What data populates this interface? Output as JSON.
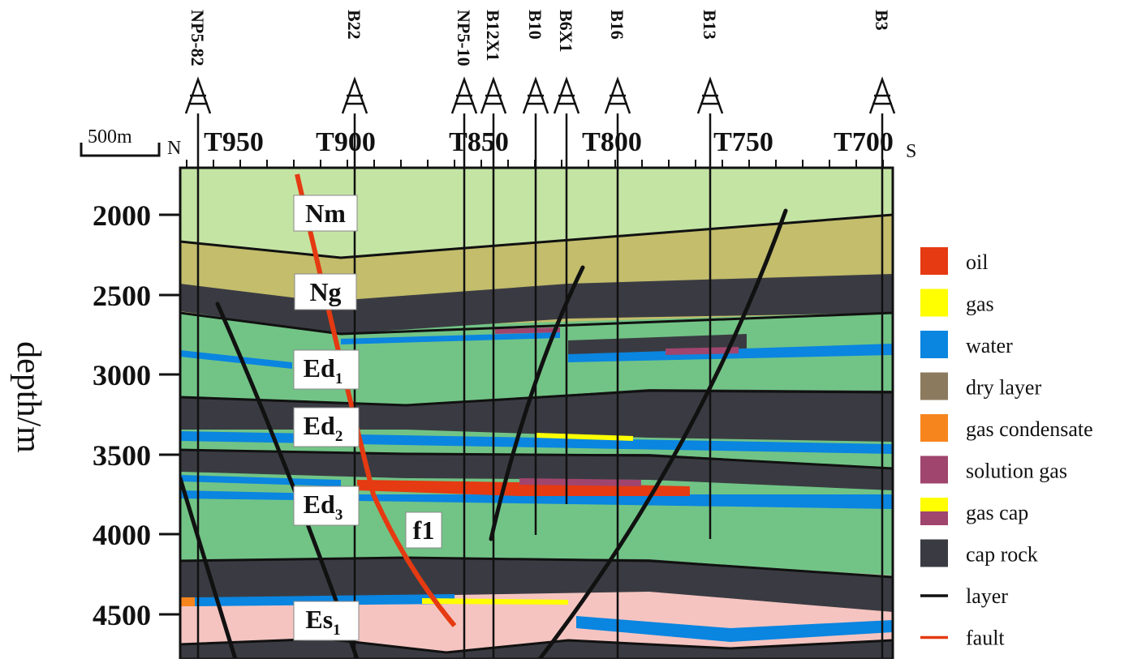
{
  "axis": {
    "ylabel": "depth/m",
    "depth_ticks": [
      "2000",
      "2500",
      "3000",
      "3500",
      "4000",
      "4500"
    ],
    "trace_ticks": [
      "T950",
      "T900",
      "T850",
      "T800",
      "T750",
      "T700"
    ],
    "north": "N",
    "south": "S",
    "scale_bar": "500m"
  },
  "wells": [
    "NP5-82",
    "B22",
    "NP5-10",
    "B12X1",
    "B10",
    "B6X1",
    "B16",
    "B13",
    "B3"
  ],
  "formations": [
    {
      "base": "Nm",
      "sub": ""
    },
    {
      "base": "Ng",
      "sub": ""
    },
    {
      "base": "Ed",
      "sub": "1"
    },
    {
      "base": "Ed",
      "sub": "2"
    },
    {
      "base": "Ed",
      "sub": "3"
    },
    {
      "base": "Es",
      "sub": "1"
    }
  ],
  "fault_label": "f1",
  "legend": [
    {
      "label": "oil",
      "color": "#e53a12"
    },
    {
      "label": "gas",
      "color": "#ffff00"
    },
    {
      "label": "water",
      "color": "#0a85e0"
    },
    {
      "label": "dry layer",
      "color": "#8c7a5e"
    },
    {
      "label": "gas condensate",
      "color": "#f7851e"
    },
    {
      "label": "solution gas",
      "color": "#a0456e"
    },
    {
      "label": "gas cap",
      "color": "#ffff00",
      "color2": "#a0456e"
    },
    {
      "label": "cap rock",
      "color": "#3a3b42"
    },
    {
      "label": "layer",
      "color": "#111111"
    },
    {
      "label": "fault",
      "color": "#e53a12"
    }
  ],
  "colors": {
    "nm": "#c4e4a4",
    "ng": "#c3bd6c",
    "ed": "#72c486",
    "es": "#f5c4c0",
    "cap": "#3a3b42",
    "water": "#0a85e0",
    "oil": "#e53a12",
    "gas": "#ffff00",
    "solution_gas": "#a0456e",
    "condensate": "#f7851e"
  }
}
